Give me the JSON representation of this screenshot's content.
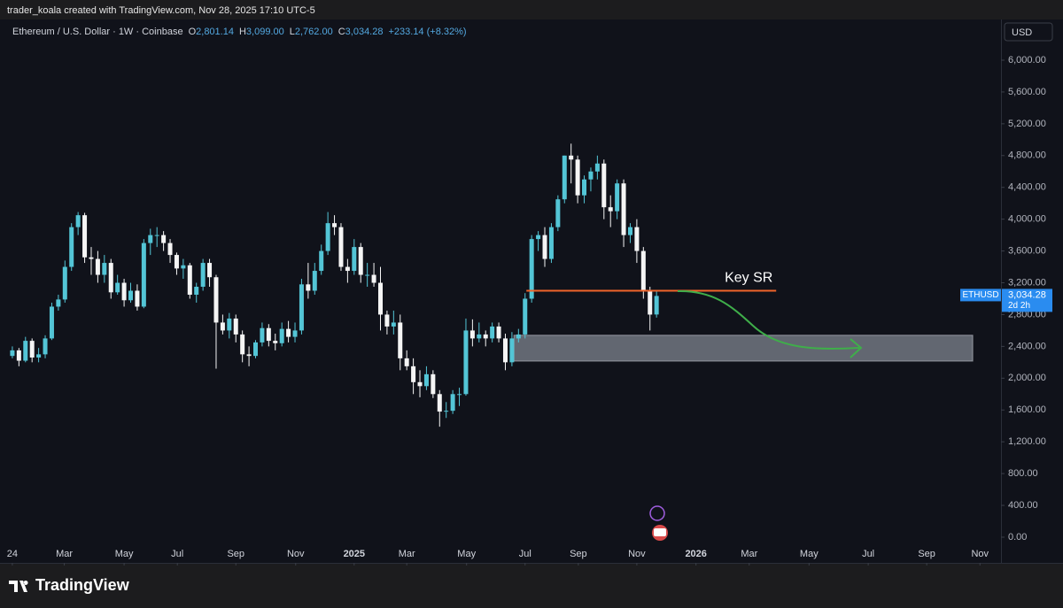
{
  "chart_data": {
    "type": "candlestick",
    "credit": "trader_koala created with TradingView.com, Nov 28, 2025 17:10 UTC-5",
    "legend": {
      "symbol": "Ethereum / U.S. Dollar · 1W · Coinbase",
      "items": [
        {
          "key": "O",
          "value": "2,801.14"
        },
        {
          "key": "H",
          "value": "3,099.00"
        },
        {
          "key": "L",
          "value": "2,762.00"
        },
        {
          "key": "C",
          "value": "3,034.28"
        }
      ],
      "change": "+233.14 (+8.32%)"
    },
    "currency": "USD",
    "up_color": "#53c5d6",
    "down_color": "#f5f5f5",
    "x": [
      0,
      1,
      2,
      3,
      4,
      5,
      6,
      7,
      8,
      9,
      10,
      11,
      12,
      13,
      14,
      15,
      16,
      17,
      18,
      19,
      20,
      21,
      22,
      23,
      24,
      25,
      26,
      27,
      28,
      29,
      30,
      31,
      32,
      33,
      34,
      35,
      36,
      37,
      38,
      39,
      40,
      41,
      42,
      43,
      44,
      45,
      46,
      47,
      48,
      49,
      50,
      51,
      52,
      53,
      54,
      55,
      56,
      57,
      58,
      59,
      60,
      61,
      62,
      63,
      64,
      65,
      66,
      67,
      68,
      69,
      70,
      71,
      72,
      73,
      74,
      75,
      76,
      77,
      78,
      79,
      80,
      81,
      82,
      83,
      84,
      85,
      86,
      87,
      88,
      89,
      90,
      91,
      92,
      93,
      94,
      95,
      96,
      97,
      98
    ],
    "open": [
      2280,
      2350,
      2220,
      2470,
      2260,
      2300,
      2500,
      2900,
      2990,
      3400,
      3900,
      4050,
      3520,
      3500,
      3300,
      3450,
      3080,
      3200,
      2980,
      3100,
      2900,
      3700,
      3800,
      3800,
      3700,
      3550,
      3380,
      3420,
      3050,
      3150,
      3450,
      3270,
      2700,
      2600,
      2750,
      2550,
      2300,
      2280,
      2450,
      2630,
      2470,
      2440,
      2620,
      2520,
      2600,
      3180,
      3100,
      3350,
      3600,
      3950,
      3900,
      3400,
      3350,
      3650,
      3300,
      3300,
      3200,
      2800,
      2650,
      2700,
      2250,
      2150,
      1950,
      1900,
      2050,
      1800,
      1580,
      1590,
      1800,
      1800,
      2600,
      2500,
      2550,
      2500,
      2650,
      2500,
      2200,
      2500,
      2550,
      3000,
      3750,
      3800,
      3500,
      3900,
      4250,
      4800,
      4750,
      4300,
      4500,
      4600,
      4700,
      4150,
      4100,
      4450,
      3800,
      3900,
      3600,
      3100,
      2801.14
    ],
    "high": [
      2400,
      2380,
      2520,
      2500,
      2380,
      2540,
      2950,
      3050,
      3480,
      3950,
      4090,
      4080,
      3650,
      3600,
      3550,
      3500,
      3300,
      3250,
      3200,
      3180,
      3750,
      3880,
      3900,
      3850,
      3750,
      3580,
      3500,
      3450,
      3200,
      3500,
      3500,
      3300,
      2800,
      2820,
      2800,
      2600,
      2400,
      2480,
      2700,
      2680,
      2560,
      2700,
      2720,
      2700,
      3250,
      3450,
      3450,
      3680,
      4090,
      4050,
      3950,
      3500,
      3750,
      3700,
      3450,
      3450,
      3400,
      2850,
      2850,
      2800,
      2350,
      2250,
      2100,
      2150,
      2100,
      1850,
      1700,
      1850,
      1880,
      2750,
      2740,
      2700,
      2600,
      2700,
      2700,
      2560,
      2580,
      2620,
      3070,
      3800,
      3850,
      3900,
      3950,
      4300,
      4800,
      4950,
      4800,
      4550,
      4650,
      4800,
      4750,
      4300,
      4500,
      4500,
      3950,
      4000,
      3650,
      3150,
      3099
    ],
    "low": [
      2250,
      2150,
      2200,
      2200,
      2200,
      2250,
      2480,
      2850,
      2950,
      3350,
      3800,
      3450,
      3300,
      3200,
      3200,
      3000,
      3050,
      2900,
      2950,
      2850,
      2880,
      3550,
      3650,
      3600,
      3450,
      3300,
      3250,
      3000,
      2950,
      3100,
      3150,
      2120,
      2550,
      2500,
      2450,
      2200,
      2150,
      2250,
      2400,
      2400,
      2350,
      2400,
      2450,
      2450,
      2550,
      3000,
      3050,
      3300,
      3550,
      3800,
      3350,
      3200,
      3300,
      3200,
      3150,
      3150,
      2600,
      2550,
      2550,
      2100,
      2100,
      1800,
      1760,
      1850,
      1750,
      1390,
      1500,
      1550,
      1650,
      1780,
      2400,
      2450,
      2400,
      2450,
      2450,
      2100,
      2150,
      2450,
      2500,
      2950,
      3600,
      3400,
      3450,
      3850,
      4200,
      4450,
      4200,
      4200,
      4350,
      4500,
      4000,
      3900,
      4000,
      3650,
      3700,
      3450,
      3000,
      2600,
      2762
    ],
    "close": [
      2350,
      2220,
      2470,
      2260,
      2300,
      2500,
      2900,
      2990,
      3400,
      3900,
      4050,
      3520,
      3500,
      3300,
      3450,
      3080,
      3200,
      2980,
      3100,
      2900,
      3700,
      3800,
      3800,
      3700,
      3550,
      3380,
      3420,
      3050,
      3150,
      3450,
      3270,
      2700,
      2600,
      2750,
      2550,
      2300,
      2280,
      2450,
      2630,
      2470,
      2440,
      2620,
      2520,
      2600,
      3180,
      3100,
      3350,
      3600,
      3950,
      3900,
      3400,
      3350,
      3650,
      3300,
      3300,
      3200,
      2800,
      2650,
      2700,
      2250,
      2150,
      1950,
      1900,
      2050,
      1800,
      1580,
      1590,
      1800,
      1800,
      2600,
      2500,
      2550,
      2500,
      2650,
      2500,
      2200,
      2500,
      2550,
      3000,
      3750,
      3800,
      3500,
      3900,
      4250,
      4800,
      4750,
      4300,
      4500,
      4600,
      4700,
      4150,
      4100,
      4450,
      3800,
      3900,
      3600,
      3100,
      2800,
      3034.28
    ],
    "xlim": [
      -0.8,
      150.4
    ],
    "xticks": [
      {
        "value": 0,
        "label": "24"
      },
      {
        "value": 7.9,
        "label": "Mar"
      },
      {
        "value": 17,
        "label": "May"
      },
      {
        "value": 25.1,
        "label": "Jul"
      },
      {
        "value": 34,
        "label": "Sep"
      },
      {
        "value": 43.1,
        "label": "Nov"
      },
      {
        "value": 52,
        "label": "2025"
      },
      {
        "value": 60,
        "label": "Mar"
      },
      {
        "value": 69.1,
        "label": "May"
      },
      {
        "value": 78,
        "label": "Jul"
      },
      {
        "value": 86.1,
        "label": "Sep"
      },
      {
        "value": 95,
        "label": "Nov"
      },
      {
        "value": 104,
        "label": "2026"
      },
      {
        "value": 112.1,
        "label": "Mar"
      },
      {
        "value": 121.2,
        "label": "May"
      },
      {
        "value": 130.2,
        "label": "Jul"
      },
      {
        "value": 139.1,
        "label": "Sep"
      },
      {
        "value": 147.2,
        "label": "Nov"
      }
    ],
    "ylim": [
      -323,
      6512
    ],
    "yticks": [
      {
        "value": 0,
        "label": "0.00"
      },
      {
        "value": 400,
        "label": "400.00"
      },
      {
        "value": 800,
        "label": "800.00"
      },
      {
        "value": 1200,
        "label": "1,200.00"
      },
      {
        "value": 1600,
        "label": "1,600.00"
      },
      {
        "value": 2000,
        "label": "2,000.00"
      },
      {
        "value": 2400,
        "label": "2,400.00"
      },
      {
        "value": 2800,
        "label": "2,800.00"
      },
      {
        "value": 3200,
        "label": "3,200.00"
      },
      {
        "value": 3600,
        "label": "3,600.00"
      },
      {
        "value": 4000,
        "label": "4,000.00"
      },
      {
        "value": 4400,
        "label": "4,400.00"
      },
      {
        "value": 4800,
        "label": "4,800.00"
      },
      {
        "value": 5200,
        "label": "5,200.00"
      },
      {
        "value": 5600,
        "label": "5,600.00"
      },
      {
        "value": 6000,
        "label": "6,000.00"
      }
    ],
    "price_tag": {
      "symbol": "ETHUSD",
      "price": 3034.28,
      "label": "3,034.28",
      "countdown": "2d 2h",
      "color": "#2a8cf0"
    },
    "key_level": {
      "label": "Key SR",
      "price": 3100,
      "x": [
        78.2,
        116.2
      ],
      "color": "#f0642a"
    },
    "zone": {
      "low": 2215,
      "high": 2540,
      "x": [
        76.3,
        146.1
      ],
      "color": "#9aa0ab"
    },
    "brand": "TradingView"
  }
}
